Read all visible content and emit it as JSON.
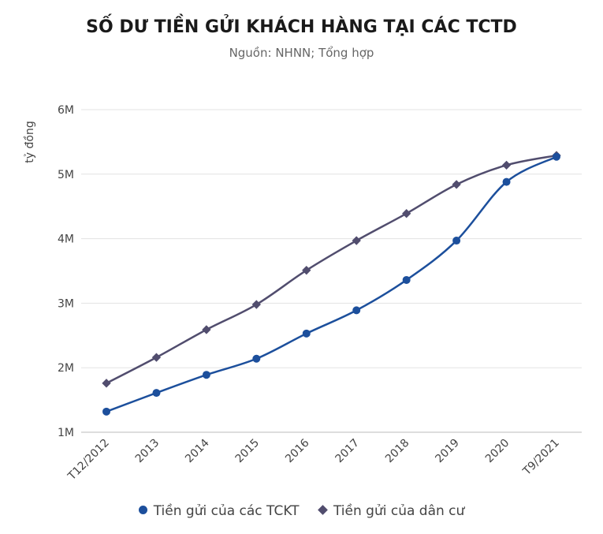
{
  "chart_data": {
    "type": "line",
    "title": "SỐ DƯ TIỀN GỬI KHÁCH HÀNG TẠI CÁC TCTD",
    "subtitle": "Nguồn: NHNN; Tổng hợp",
    "ylabel": "tỷ đồng",
    "xlabel": "",
    "categories": [
      "T12/2012",
      "2013",
      "2014",
      "2015",
      "2016",
      "2017",
      "2018",
      "2019",
      "2020",
      "T9/2021"
    ],
    "ylim": [
      1000000,
      6000000
    ],
    "yticks": [
      {
        "v": 1000000,
        "label": "1M"
      },
      {
        "v": 2000000,
        "label": "2M"
      },
      {
        "v": 3000000,
        "label": "3M"
      },
      {
        "v": 4000000,
        "label": "4M"
      },
      {
        "v": 5000000,
        "label": "5M"
      },
      {
        "v": 6000000,
        "label": "6M"
      }
    ],
    "grid": true,
    "legend_position": "bottom",
    "series": [
      {
        "name": "Tiền gửi của các TCKT",
        "color": "#1c4f9c",
        "marker": "circle",
        "values": [
          1320000,
          1610000,
          1890000,
          2140000,
          2530000,
          2890000,
          3360000,
          3970000,
          4880000,
          5270000
        ]
      },
      {
        "name": "Tiền gửi của dân cư",
        "color": "#514d6e",
        "marker": "diamond",
        "values": [
          1760000,
          2160000,
          2590000,
          2980000,
          3510000,
          3970000,
          4390000,
          4840000,
          5140000,
          5290000
        ]
      }
    ]
  }
}
